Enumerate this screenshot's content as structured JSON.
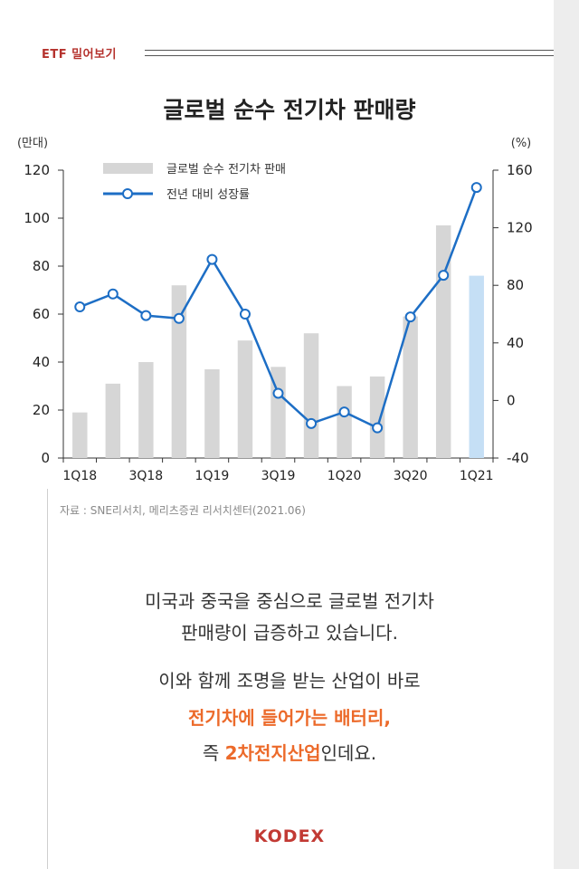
{
  "header": {
    "tag": "ETF 밀어보기"
  },
  "chart_data": {
    "type": "bar+line",
    "title": "글로벌 순수 전기차 판매량",
    "left_axis_unit": "(만대)",
    "right_axis_unit": "(%)",
    "categories": [
      "1Q18",
      "2Q18",
      "3Q18",
      "4Q18",
      "1Q19",
      "2Q19",
      "3Q19",
      "4Q19",
      "1Q20",
      "2Q20",
      "3Q20",
      "4Q20",
      "1Q21"
    ],
    "x_tick_labels": [
      "1Q18",
      "3Q18",
      "1Q19",
      "3Q19",
      "1Q20",
      "3Q20",
      "1Q21"
    ],
    "left_ylim": [
      0,
      120
    ],
    "left_ticks": [
      0,
      20,
      40,
      60,
      80,
      100,
      120
    ],
    "right_ylim": [
      -40,
      160
    ],
    "right_ticks": [
      -40,
      0,
      40,
      80,
      120,
      160
    ],
    "series": [
      {
        "name": "글로벌 순수 전기차 판매",
        "type": "bar",
        "axis": "left",
        "values": [
          19,
          31,
          40,
          72,
          37,
          49,
          38,
          52,
          30,
          34,
          59,
          97,
          76
        ]
      },
      {
        "name": "전년 대비 성장률",
        "type": "line",
        "axis": "right",
        "values": [
          65,
          74,
          59,
          57,
          98,
          60,
          5,
          -16,
          -8,
          -19,
          58,
          87,
          148
        ]
      }
    ],
    "highlight_last_bar": true,
    "colors": {
      "bar": "#d6d6d6",
      "bar_highlight": "#c5dff5",
      "line": "#1d6ec5",
      "marker_fill": "#ffffff"
    },
    "legend_position": "top-left"
  },
  "source": "자료 : SNE리서치, 메리츠증권 리서치센터(2021.06)",
  "body": {
    "line1": "미국과 중국을 중심으로 글로벌 전기차",
    "line2": "판매량이 급증하고 있습니다.",
    "line3": "이와 함께 조명을 받는 산업이 바로",
    "line4": "전기차에 들어가는 배터리,",
    "line5_prefix": "즉 ",
    "line5_highlight": "2차전지산업",
    "line5_suffix": "인데요."
  },
  "logo": "KODEX"
}
